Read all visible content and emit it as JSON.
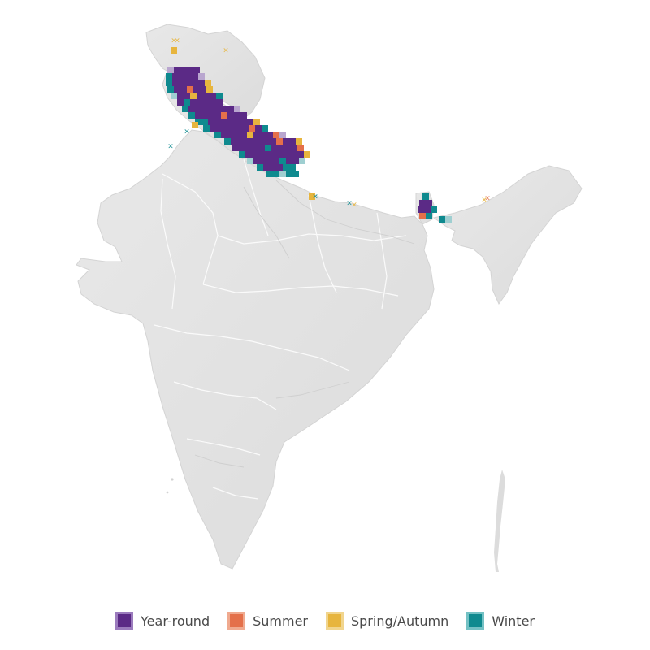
{
  "legend": {
    "items": [
      {
        "label": "Year-round",
        "color": "#5b2a86",
        "border": "#9b7bbd"
      },
      {
        "label": "Summer",
        "color": "#e4704a",
        "border": "#f0aa8f"
      },
      {
        "label": "Spring/Autumn",
        "color": "#e7b53e",
        "border": "#f1d58e"
      },
      {
        "label": "Winter",
        "color": "#0f8a8f",
        "border": "#74c1c4"
      }
    ]
  },
  "map": {
    "land_color": "#e3e3e3",
    "border_color": "#ffffff",
    "cell_counts_by_season": {
      "year_round": 70,
      "summer": 12,
      "spring_autumn": 14,
      "winter": 32
    },
    "cross_marker_counts": {
      "spring_autumn": 6,
      "winter": 4
    }
  }
}
